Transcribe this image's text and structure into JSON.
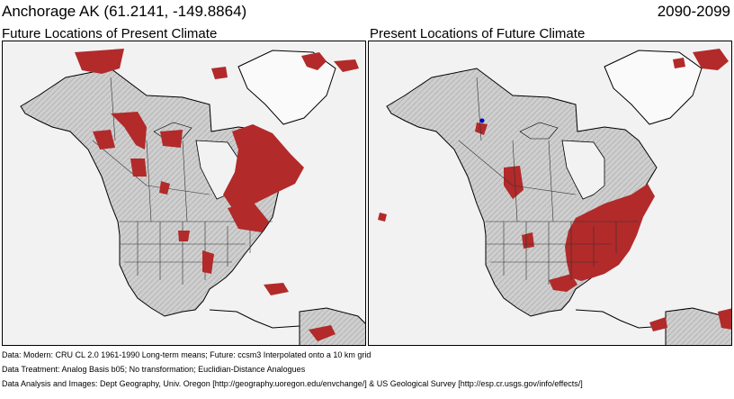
{
  "header": {
    "location": "Anchorage AK  (61.2141, -149.8864)",
    "period": "2090-2099"
  },
  "panels": {
    "left_title": "Future Locations of Present Climate",
    "right_title": "Present Locations of Future Climate"
  },
  "colors": {
    "analog": "#b22a2a",
    "land": "#cfcfcf",
    "water": "#f2f2f2",
    "ice": "#ffffff",
    "marker": "#0000cc"
  },
  "footer": {
    "data": "Data:  Modern: CRU CL 2.0 1961-1990 Long-term means; Future: ccsm3 Interpolated onto a 10 km grid",
    "treatment": "Data Treatment:  Analog Basis b05; No transformation; Euclidian-Distance Analogues",
    "analysis": "Data Analysis and Images:  Dept Geography, Univ. Oregon [http://geography.uoregon.edu/envchange/] & US Geological Survey [http://esp.cr.usgs.gov/info/effects/]"
  }
}
